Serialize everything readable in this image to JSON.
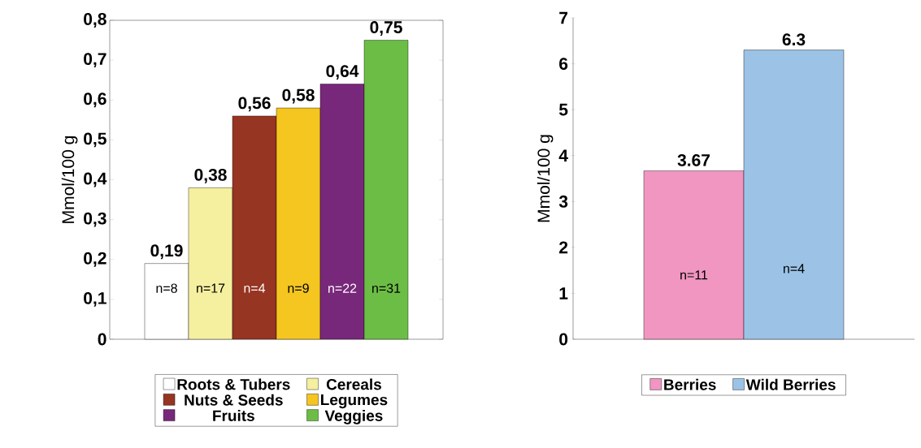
{
  "chart_data": [
    {
      "type": "bar",
      "ylabel": "Mmol/100 g",
      "categories": [
        null
      ],
      "legend": "bottom",
      "ylim": [
        0,
        0.8
      ],
      "yticks": [
        {
          "value": 0,
          "label": "0"
        },
        {
          "value": 0.1,
          "label": "0,1"
        },
        {
          "value": 0.2,
          "label": "0,2"
        },
        {
          "value": 0.3,
          "label": "0,3"
        },
        {
          "value": 0.4,
          "label": "0,4"
        },
        {
          "value": 0.5,
          "label": "0,5"
        },
        {
          "value": 0.6,
          "label": "0,6"
        },
        {
          "value": 0.7,
          "label": "0,7"
        },
        {
          "value": 0.8,
          "label": "0,8"
        }
      ],
      "series": [
        {
          "name": "Roots & Tubers",
          "color": "#ffffff",
          "values": [
            0.19
          ],
          "value_labels": [
            "0,19"
          ]
        },
        {
          "name": "Cereals",
          "color": "#f5f0a0",
          "values": [
            0.38
          ],
          "value_labels": [
            "0,38"
          ]
        },
        {
          "name": "Nuts & Seeds",
          "color": "#963522",
          "values": [
            0.56
          ],
          "value_labels": [
            "0,56"
          ]
        },
        {
          "name": "Legumes",
          "color": "#f5c520",
          "values": [
            0.58
          ],
          "value_labels": [
            "0,58"
          ]
        },
        {
          "name": "Fruits",
          "color": "#78287a",
          "values": [
            0.64
          ],
          "value_labels": [
            "0,64"
          ]
        },
        {
          "name": "Veggies",
          "color": "#6cbd45",
          "values": [
            0.75
          ],
          "value_labels": [
            "0,75"
          ]
        }
      ],
      "annotations": [
        "n=8",
        "n=17",
        "n=4",
        "n=9",
        "n=22",
        "n=31"
      ]
    },
    {
      "type": "bar",
      "ylabel": "Mmol/100 g",
      "categories": [
        null
      ],
      "legend": "bottom",
      "ylim": [
        0,
        7
      ],
      "yticks": [
        0,
        1,
        2,
        3,
        4,
        5,
        6,
        7
      ],
      "series": [
        {
          "name": "Berries",
          "color": "#f096c0",
          "values": [
            3.67
          ],
          "value_labels": [
            "3.67"
          ]
        },
        {
          "name": "Wild Berries",
          "color": "#9cc3e6",
          "values": [
            6.3
          ],
          "value_labels": [
            "6.3"
          ]
        }
      ],
      "annotations": [
        "n=11",
        "n=4"
      ]
    }
  ]
}
